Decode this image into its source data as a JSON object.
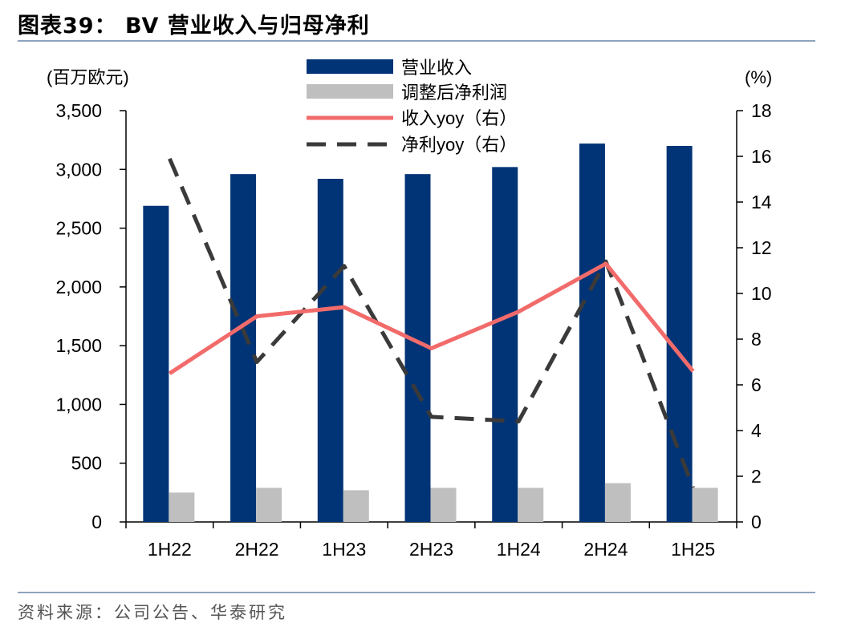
{
  "title": "图表39： BV 营业收入与归母净利",
  "source": "资料来源：公司公告、华泰研究",
  "colors": {
    "revenue": "#003476",
    "net_profit": "#bfbfbf",
    "revenue_yoy": "#f26b6b",
    "net_profit_yoy": "#3a3a3a"
  },
  "chart_data": {
    "type": "bar",
    "categories": [
      "1H22",
      "2H22",
      "1H23",
      "2H23",
      "1H24",
      "2H24",
      "1H25"
    ],
    "left_axis": {
      "unit_label": "(百万欧元)",
      "range": [
        0,
        3500
      ],
      "ticks": [
        "0",
        "500",
        "1,000",
        "1,500",
        "2,000",
        "2,500",
        "3,000",
        "3,500"
      ],
      "tick_values": [
        0,
        500,
        1000,
        1500,
        2000,
        2500,
        3000,
        3500
      ]
    },
    "right_axis": {
      "unit_label": "(%)",
      "range": [
        0,
        18
      ],
      "ticks": [
        "0",
        "2",
        "4",
        "6",
        "8",
        "10",
        "12",
        "14",
        "16",
        "18"
      ],
      "tick_values": [
        0,
        2,
        4,
        6,
        8,
        10,
        12,
        14,
        16,
        18
      ]
    },
    "series": [
      {
        "name": "营业收入",
        "type": "bar",
        "axis": "left",
        "values": [
          2690,
          2960,
          2920,
          2960,
          3020,
          3220,
          3200
        ]
      },
      {
        "name": "调整后净利润",
        "type": "bar",
        "axis": "left",
        "values": [
          250,
          290,
          270,
          290,
          290,
          330,
          290
        ]
      },
      {
        "name": "收入yoy（右）",
        "type": "line",
        "axis": "right",
        "values": [
          6.5,
          9.0,
          9.4,
          7.6,
          9.2,
          11.3,
          6.6
        ]
      },
      {
        "name": "净利yoy（右）",
        "type": "line",
        "axis": "right",
        "dashed": true,
        "values": [
          15.9,
          7.0,
          11.2,
          4.6,
          4.4,
          11.4,
          1.5
        ]
      }
    ],
    "legend_position": "top-center",
    "grid": false
  }
}
